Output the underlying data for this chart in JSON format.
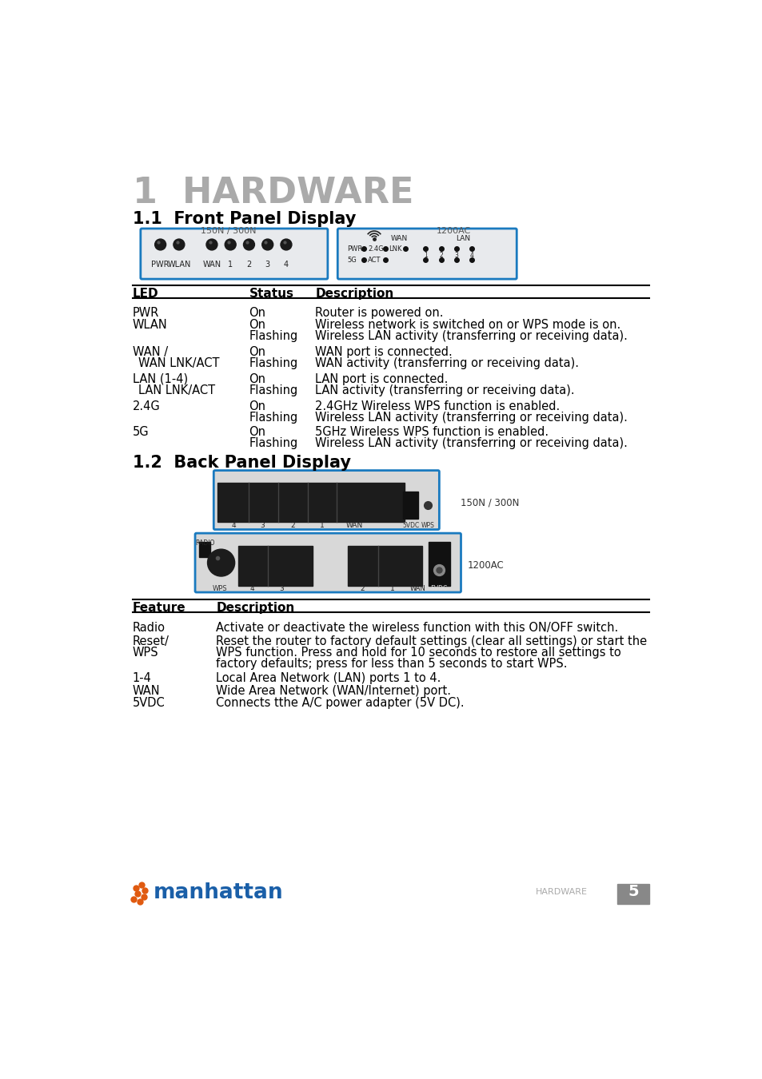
{
  "title": "1  HARDWARE",
  "section1": "1.1  Front Panel Display",
  "section2": "1.2  Back Panel Display",
  "bg_color": "#ffffff",
  "title_color": "#aaaaaa",
  "section_color": "#000000",
  "led_table_header": [
    "LED",
    "Status",
    "Description"
  ],
  "led_rows": [
    [
      "PWR",
      "On",
      "Router is powered on."
    ],
    [
      "WLAN",
      "On\nFlashing",
      "Wireless network is switched on or WPS mode is on.\nWireless LAN activity (transferring or receiving data)."
    ],
    [
      "WAN /\n  WAN LNK/ACT",
      "On\nFlashing",
      "WAN port is connected.\nWAN activity (transferring or receiving data)."
    ],
    [
      "LAN (1-4)\n  LAN LNK/ACT",
      "On\nFlashing",
      "LAN port is connected.\nLAN activity (transferring or receiving data)."
    ],
    [
      "2.4G",
      "On\nFlashing",
      "2.4GHz Wireless WPS function is enabled.\nWireless LAN activity (transferring or receiving data)."
    ],
    [
      "5G",
      "On\nFlashing",
      "5GHz Wireless WPS function is enabled.\nWireless LAN activity (transferring or receiving data)."
    ]
  ],
  "back_table_header": [
    "Feature",
    "Description"
  ],
  "back_rows": [
    [
      "Radio",
      "Activate or deactivate the wireless function with this ON/OFF switch."
    ],
    [
      "Reset/\nWPS",
      "Reset the router to factory default settings (clear all settings) or start the\nWPS function. Press and hold for 10 seconds to restore all settings to\nfactory defaults; press for less than 5 seconds to start WPS."
    ],
    [
      "1-4",
      "Local Area Network (LAN) ports 1 to 4."
    ],
    [
      "WAN",
      "Wide Area Network (WAN/Internet) port."
    ],
    [
      "5VDC",
      "Connects tthe A/C power adapter (5V DC)."
    ]
  ],
  "footer_text": "HARDWARE",
  "page_num": "5",
  "border_color": "#1a7abf",
  "panel_bg": "#e8eaed",
  "label_150N": "150N / 300N",
  "label_1200AC": "1200AC"
}
